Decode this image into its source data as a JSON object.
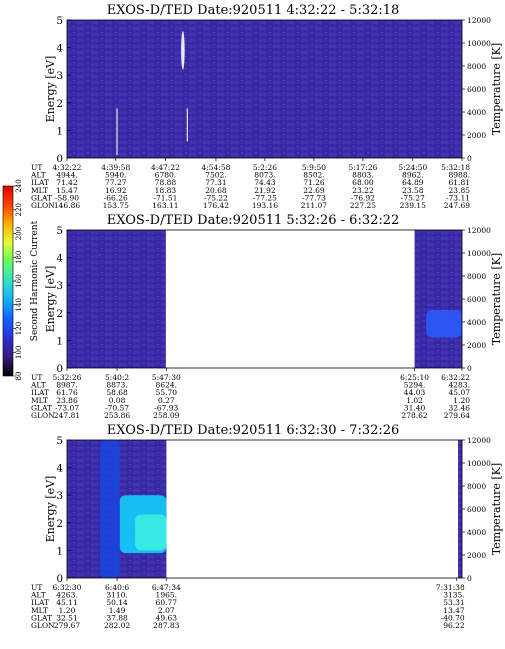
{
  "colors": {
    "background": "#ffffff",
    "low_intensity": "#3a2ca8",
    "gap": "#ffffff",
    "enhancement": "#00c8e0"
  },
  "colorbar": {
    "label": "Second Harmonic Current",
    "ticks": [
      "80",
      "100",
      "120",
      "140",
      "160",
      "180",
      "200",
      "220",
      "240"
    ],
    "stops": [
      "#000000",
      "#3a1a80",
      "#2a30d0",
      "#1060ff",
      "#10b0ff",
      "#30e0c0",
      "#60ff60",
      "#e0ff30",
      "#ffb000",
      "#ff4000",
      "#e00000"
    ]
  },
  "chart_data": [
    {
      "type": "heatmap",
      "title": "EXOS-D/TED   Date:920511  4:32:22 - 5:32:18",
      "ylabel": "Energy [eV]",
      "ylabel_right": "Temperature [K]",
      "ylim": [
        0,
        5
      ],
      "ylim_right": [
        0,
        12000
      ],
      "yticks": [
        "0",
        "1",
        "2",
        "3",
        "4",
        "5"
      ],
      "yticks_right": [
        "0",
        "2000",
        "4000",
        "6000",
        "8000",
        "10000",
        "12000"
      ],
      "time_range_s": [
        0,
        3596
      ],
      "gaps": [],
      "features": [
        {
          "kind": "bright-streak",
          "t0": 1050,
          "t1": 1060,
          "e0": 3.2,
          "e1": 4.6,
          "color": "#e8e8e8"
        },
        {
          "kind": "thin-line",
          "t0": 450,
          "t1": 456,
          "e0": 0.1,
          "e1": 1.8,
          "color": "#e8e8e8"
        },
        {
          "kind": "thin-line",
          "t0": 1090,
          "t1": 1096,
          "e0": 0.6,
          "e1": 1.8,
          "color": "#e8e8e8"
        }
      ],
      "table": {
        "row_labels": [
          "UT",
          "ALT",
          "ILAT",
          "MLT",
          "GLAT",
          "GLON"
        ],
        "columns": [
          {
            "t": 0,
            "values": [
              "4:32:22",
              "4944.",
              "71.42",
              "15.47",
              "-58.90",
              "146.86"
            ]
          },
          {
            "t": 444,
            "values": [
              "4:39:58",
              "5940.",
              "77.27",
              "16.92",
              "-66.26",
              "153.75"
            ]
          },
          {
            "t": 896,
            "values": [
              "4:47:22",
              "6780.",
              "78.88",
              "18.83",
              "-71.51",
              "163.11"
            ]
          },
          {
            "t": 1356,
            "values": [
              "4:54:58",
              "7502.",
              "77.31",
              "20.68",
              "-75.22",
              "176.42"
            ]
          },
          {
            "t": 1802,
            "values": [
              "5:2:26",
              "8073.",
              "74.43",
              "21.92",
              "-77.25",
              "193.16"
            ]
          },
          {
            "t": 2248,
            "values": [
              "5:9:50",
              "8502.",
              "71.26",
              "22.69",
              "-77.73",
              "211.07"
            ]
          },
          {
            "t": 2694,
            "values": [
              "5:17:26",
              "8803.",
              "68.00",
              "23.22",
              "-76.92",
              "227.25"
            ]
          },
          {
            "t": 3148,
            "values": [
              "5:24:50",
              "8962.",
              "64.89",
              "23.58",
              "-75.27",
              "239.15"
            ]
          },
          {
            "t": 3596,
            "values": [
              "5:32:18",
              "8988.",
              "61.81",
              "23.85",
              "-73.11",
              "247.69"
            ]
          }
        ]
      }
    },
    {
      "type": "heatmap",
      "title": "EXOS-D/TED   Date:920511  5:32:26 - 6:32:22",
      "ylabel": "Energy [eV]",
      "ylabel_right": "Temperature [K]",
      "ylim": [
        0,
        5
      ],
      "ylim_right": [
        0,
        12000
      ],
      "yticks": [
        "0",
        "1",
        "2",
        "3",
        "4",
        "5"
      ],
      "yticks_right": [
        "0",
        "2000",
        "4000",
        "6000",
        "8000",
        "10000",
        "12000"
      ],
      "time_range_s": [
        0,
        3596
      ],
      "gaps": [
        [
          900,
          3164
        ]
      ],
      "features": [
        {
          "kind": "blob",
          "t0": 3270,
          "t1": 3596,
          "e0": 1.1,
          "e1": 2.1,
          "color": "#2a5cff"
        },
        {
          "kind": "speck",
          "t0": 290,
          "t1": 296,
          "e0": 4.05,
          "e1": 4.15,
          "color": "#c03030"
        }
      ],
      "table": {
        "row_labels": [
          "UT",
          "ALT",
          "ILAT",
          "MLT",
          "GLAT",
          "GLON"
        ],
        "columns": [
          {
            "t": 0,
            "values": [
              "5:32:26",
              "8987.",
              "61.76",
              "23.86",
              "-73.07",
              "247.81"
            ]
          },
          {
            "t": 456,
            "values": [
              "5:40:2",
              "8873.",
              "58.68",
              "0.08",
              "-70.57",
              "253.86"
            ]
          },
          {
            "t": 904,
            "values": [
              "5:47:30",
              "8624.",
              "55.70",
              "0.27",
              "-67.93",
              "258.09"
            ]
          },
          {
            "t": 3164,
            "values": [
              "6:25:10",
              "5294.",
              "44.03",
              "1.02",
              "31.40",
              "278.62"
            ]
          },
          {
            "t": 3596,
            "values": [
              "6:32:22",
              "4283.",
              "45.07",
              "1.20",
              "32.46",
              "279.64"
            ]
          }
        ]
      }
    },
    {
      "type": "heatmap",
      "title": "EXOS-D/TED   Date:920511  6:32:30 - 7:32:26",
      "ylabel": "Energy [eV]",
      "ylabel_right": "Temperature [K]",
      "ylim": [
        0,
        5
      ],
      "ylim_right": [
        0,
        12000
      ],
      "yticks": [
        "0",
        "1",
        "2",
        "3",
        "4",
        "5"
      ],
      "yticks_right": [
        "0",
        "2000",
        "4000",
        "6000",
        "8000",
        "10000",
        "12000"
      ],
      "time_range_s": [
        0,
        3596
      ],
      "gaps": [
        [
          905,
          3560
        ]
      ],
      "features": [
        {
          "kind": "blob",
          "t0": 480,
          "t1": 905,
          "e0": 0.9,
          "e1": 3.0,
          "color": "#10d8ff"
        },
        {
          "kind": "blob",
          "t0": 620,
          "t1": 905,
          "e0": 1.0,
          "e1": 2.3,
          "color": "#40f0e0"
        },
        {
          "kind": "blob",
          "t0": 300,
          "t1": 480,
          "e0": 0.0,
          "e1": 5.0,
          "color": "#1a46e0"
        }
      ],
      "table": {
        "row_labels": [
          "UT",
          "ALT",
          "ILAT",
          "MLT",
          "GLAT",
          "GLON"
        ],
        "columns": [
          {
            "t": 0,
            "values": [
              "6:32:30",
              "4263.",
              "45.11",
              "1.20",
              "32.51",
              "279.67"
            ]
          },
          {
            "t": 456,
            "values": [
              "6:40:6",
              "3110.",
              "50.14",
              "1.49",
              "37.88",
              "282.02"
            ]
          },
          {
            "t": 904,
            "values": [
              "6:47:34",
              "1965.",
              "60.77",
              "2.07",
              "49.63",
              "287.83"
            ]
          },
          {
            "t": 3548,
            "values": [
              "7:31:38",
              "3135.",
              "53.31",
              "13.47",
              "-40.70",
              "96.22"
            ]
          }
        ]
      }
    }
  ]
}
